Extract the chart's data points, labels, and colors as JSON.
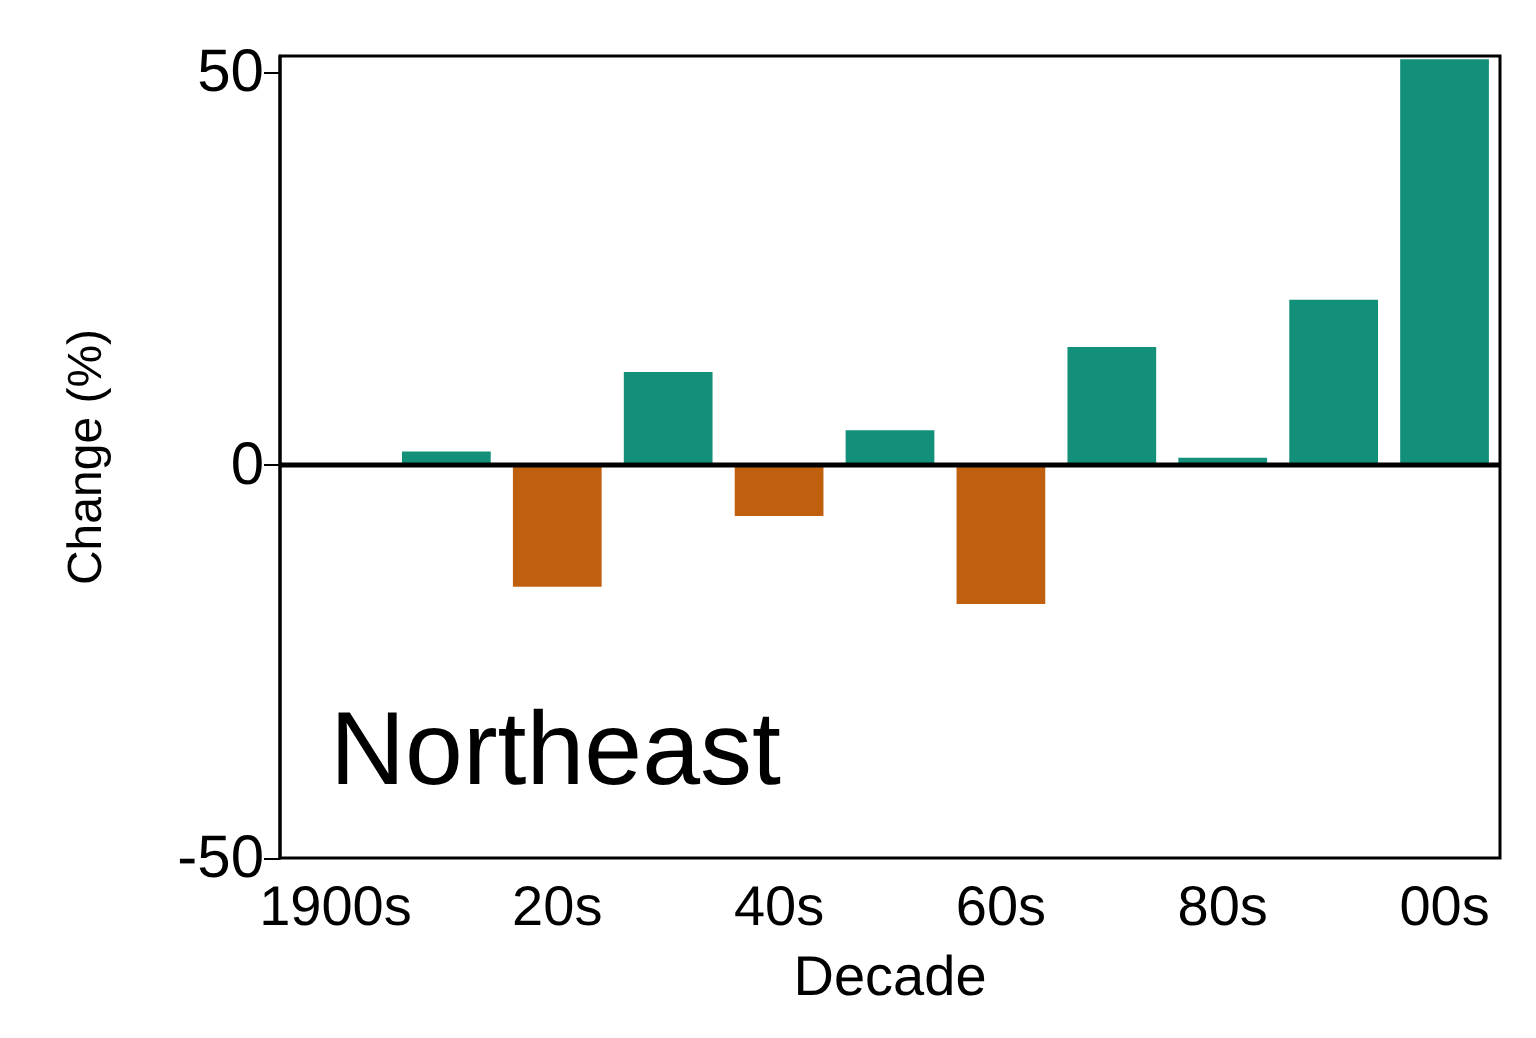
{
  "chart_data": {
    "type": "bar",
    "xlabel": "Decade",
    "ylabel": "Change (%)",
    "annotations": [
      "Northeast"
    ],
    "categories": [
      "1900s",
      null,
      "20s",
      null,
      "40s",
      null,
      "60s",
      null,
      "80s",
      null,
      "00s"
    ],
    "values": [
      0,
      1.7,
      -15.5,
      11.8,
      -6.5,
      4.4,
      -17.7,
      15,
      0.9,
      21,
      51.6
    ],
    "colors": [
      "#13907a",
      "#13907a",
      "#c0600f",
      "#13907a",
      "#c0600f",
      "#13907a",
      "#c0600f",
      "#13907a",
      "#13907a",
      "#13907a",
      "#13907a"
    ],
    "ylim": [
      -50,
      52
    ],
    "yticks": [
      -50,
      0,
      50
    ],
    "ref_lines": [
      {
        "axis": "y",
        "value": 0,
        "color": "#000000"
      }
    ],
    "grid": false
  }
}
